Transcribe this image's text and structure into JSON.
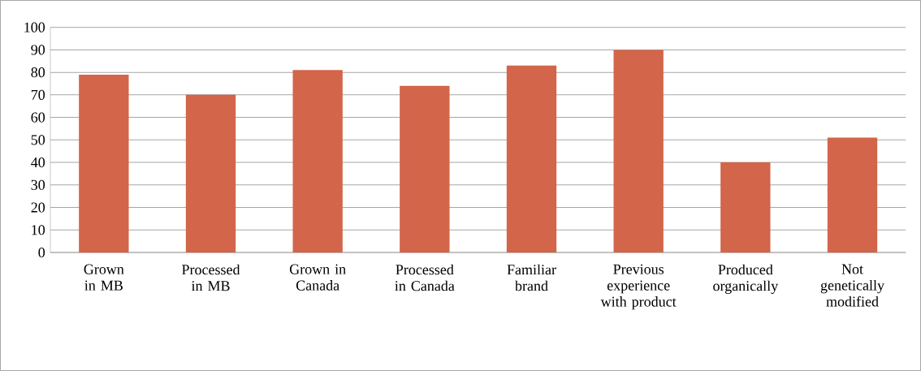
{
  "chart_data": {
    "type": "bar",
    "categories": [
      "Grown in MB",
      "Processed in MB",
      "Grown in Canada",
      "Processed in Canada",
      "Familiar brand",
      "Previous experience with product",
      "Produced organically",
      "Not genetically modified"
    ],
    "values": [
      79,
      70,
      81,
      74,
      83,
      90,
      40,
      51
    ],
    "color": "#d2654a",
    "ylim": [
      0,
      100
    ],
    "yticks": [
      0,
      10,
      20,
      30,
      40,
      50,
      60,
      70,
      80,
      90,
      100
    ],
    "grid": "y"
  }
}
